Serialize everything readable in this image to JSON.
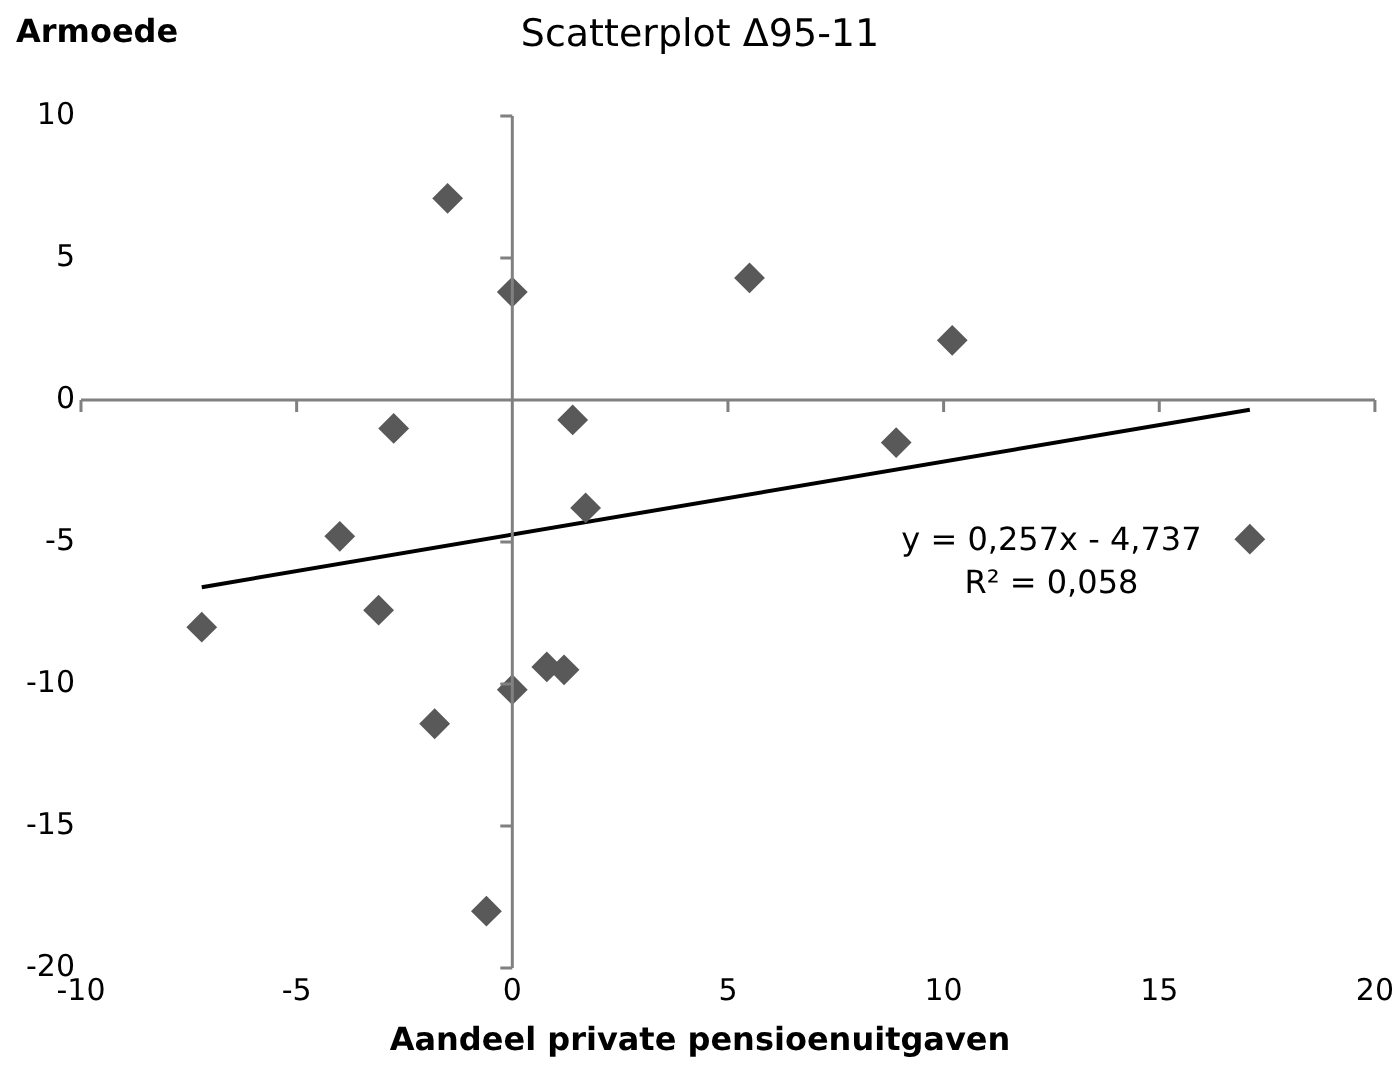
{
  "chart_data": {
    "type": "scatter",
    "title": "Scatterplot  Δ95-11",
    "xlabel": "Aandeel  private pensioenuitgaven",
    "ylabel": "Armoede",
    "xlim": [
      -10,
      20
    ],
    "xticks": [
      -10,
      -5,
      0,
      5,
      10,
      15,
      20
    ],
    "ylim": [
      -20,
      10
    ],
    "yticks": [
      -20,
      -15,
      -10,
      -5,
      0,
      5,
      10
    ],
    "legend": false,
    "marker": "diamond",
    "series": [
      {
        "color": "#595959",
        "x": [
          -7.2,
          -4.0,
          -3.1,
          -2.75,
          -1.8,
          -1.5,
          -0.6,
          0,
          0,
          0.8,
          1.2,
          1.4,
          1.7,
          5.5,
          8.9,
          10.2,
          17.1
        ],
        "values": [
          -8.0,
          -4.8,
          -7.4,
          -1.0,
          -11.4,
          7.1,
          -18.0,
          3.8,
          -10.2,
          -9.4,
          -9.5,
          -0.7,
          -3.8,
          4.3,
          -1.5,
          2.1,
          -4.9
        ]
      },
      {
        "type": "line",
        "color": "#000000",
        "marker": "none",
        "x": [
          -7.2,
          17.1
        ],
        "values": [
          -6.59,
          -0.34
        ]
      }
    ],
    "annotations": [
      "y = 0,257x - 4,737",
      "R² = 0,058"
    ]
  }
}
